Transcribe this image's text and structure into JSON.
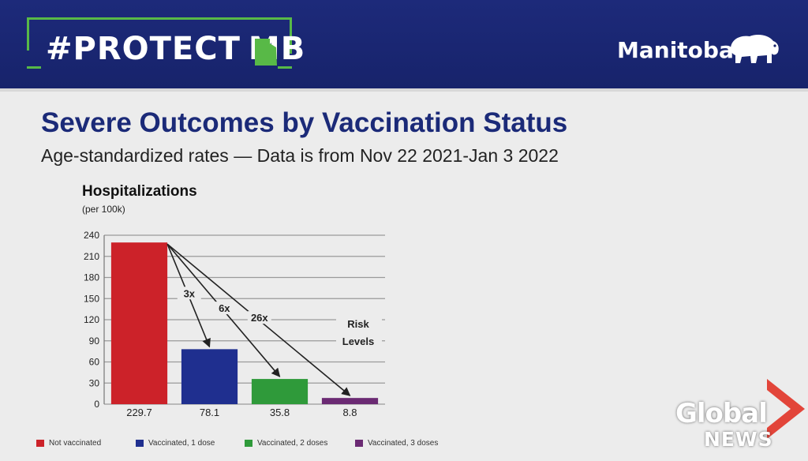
{
  "header": {
    "campaign_prefix": "#PROTECT",
    "campaign_suffix": "MB",
    "province": "Manitoba"
  },
  "slide": {
    "title": "Severe Outcomes by Vaccination Status",
    "subtitle": "Age-standardized  rates  —  Data is from Nov 22 2021-Jan 3 2022"
  },
  "chart_data": {
    "type": "bar",
    "title": "Hospitalizations",
    "unit_label": "(per 100k)",
    "categories": [
      "Not vaccinated",
      "Vaccinated, 1 dose",
      "Vaccinated, 2 doses",
      "Vaccinated, 3 doses"
    ],
    "values": [
      229.7,
      78.1,
      35.8,
      8.8
    ],
    "value_labels": [
      "229.7",
      "78.1",
      "35.8",
      "8.8"
    ],
    "colors": [
      "#cc2229",
      "#1f2f8f",
      "#2f9a3a",
      "#6b2a73"
    ],
    "ylim": [
      0,
      240
    ],
    "yticks": [
      0,
      30,
      60,
      90,
      120,
      150,
      180,
      210,
      240
    ],
    "grid": true,
    "legend": "bottom",
    "annotations": [
      {
        "label": "3x",
        "to_index": 1
      },
      {
        "label": "6x",
        "to_index": 2
      },
      {
        "label": "26x",
        "to_index": 3
      }
    ],
    "annotation_legend": [
      "Risk",
      "Levels"
    ]
  },
  "broadcaster": {
    "name_line1": "Global",
    "name_line2": "NEWS",
    "accent_color": "#e2453a"
  }
}
